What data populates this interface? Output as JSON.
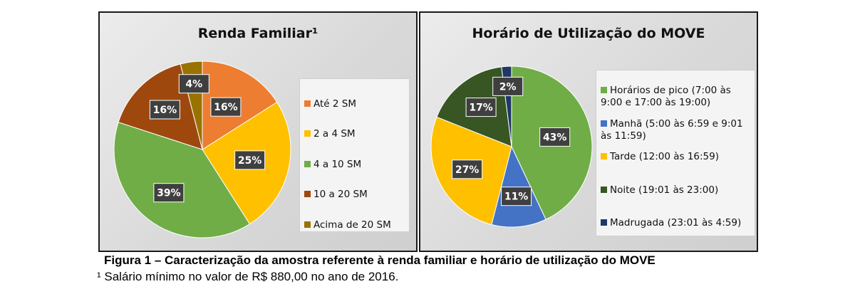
{
  "chart_data": [
    {
      "type": "pie",
      "title": "Renda Familiar¹",
      "categories": [
        "Até 2 SM",
        "2 a 4 SM",
        "4 a 10 SM",
        "10 a 20 SM",
        "Acima de 20 SM"
      ],
      "values": [
        16,
        25,
        39,
        16,
        4
      ],
      "data_labels": [
        "16%",
        "25%",
        "39%",
        "16%",
        "4%"
      ],
      "colors": [
        "#ED7D31",
        "#FFC000",
        "#70AD47",
        "#9E480E",
        "#997300"
      ],
      "legend_position": "right"
    },
    {
      "type": "pie",
      "title": "Horário de Utilização do MOVE",
      "categories": [
        "Horários de pico (7:00 às 9:00 e 17:00 às 19:00)",
        "Manhã (5:00 às 6:59 e 9:01 às 11:59)",
        "Tarde (12:00 às 16:59)",
        "Noite (19:01 às 23:00)",
        "Madrugada (23:01 às 4:59)"
      ],
      "values": [
        43,
        11,
        27,
        17,
        2
      ],
      "data_labels": [
        "43%",
        "11%",
        "27%",
        "17%",
        "2%"
      ],
      "colors": [
        "#70AD47",
        "#4472C4",
        "#FFC000",
        "#375623",
        "#203864"
      ],
      "legend_position": "right"
    }
  ],
  "caption": "Figura 1 – Caracterização da amostra referente à renda familiar e horário de utilização do MOVE",
  "footnote": "¹ Salário mínimo no valor de R$ 880,00 no ano de 2016."
}
